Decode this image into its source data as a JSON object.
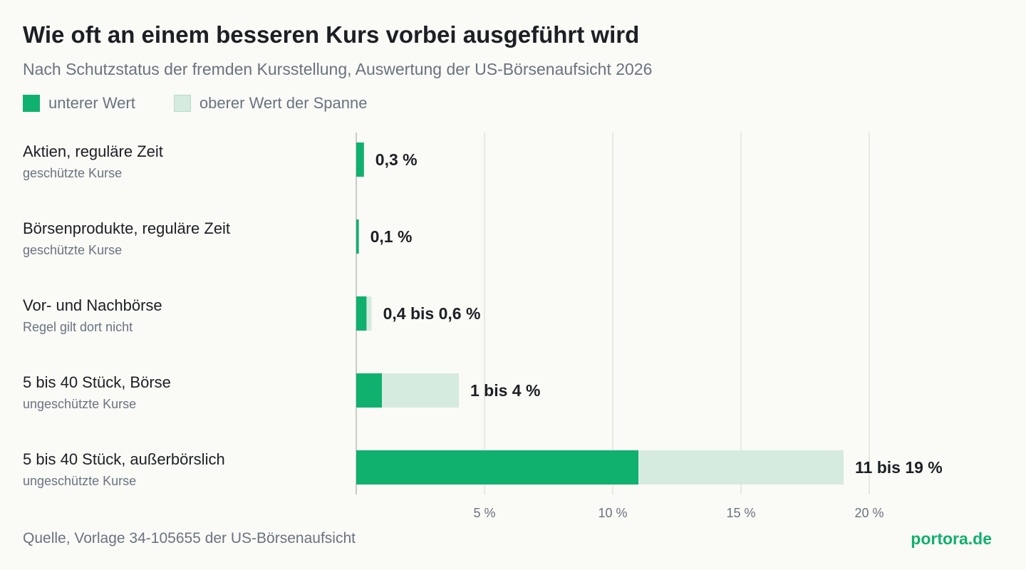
{
  "header": {
    "title": "Wie oft an einem besseren Kurs vorbei ausgeführt wird",
    "subtitle": "Nach Schutzstatus der fremden Kursstellung, Auswertung der US-Börsenaufsicht 2026"
  },
  "legend": {
    "low_label": "unterer Wert",
    "high_label": "oberer Wert der Spanne"
  },
  "colors": {
    "low": "#10b06e",
    "high": "#d6ebdf",
    "grid": "#e3e3dc",
    "axis": "#bdbdb5"
  },
  "chart_data": {
    "type": "bar",
    "orientation": "horizontal",
    "stacked_range": true,
    "categories": [
      "Aktien, reguläre Zeit",
      "Börsenprodukte, reguläre Zeit",
      "Vor- und Nachbörse",
      "5 bis 40 Stück, Börse",
      "5 bis 40 Stück, außerbörslich"
    ],
    "category_subtitles": [
      "geschützte Kurse",
      "geschützte Kurse",
      "Regel gilt dort nicht",
      "ungeschützte Kurse",
      "ungeschützte Kurse"
    ],
    "series": [
      {
        "name": "unterer Wert",
        "values": [
          0.3,
          0.1,
          0.4,
          1,
          11
        ]
      },
      {
        "name": "oberer Wert der Spanne",
        "values": [
          0.3,
          0.1,
          0.6,
          4,
          19
        ]
      }
    ],
    "data_labels": [
      "0,3 %",
      "0,1 %",
      "0,4 bis 0,6 %",
      "1 bis 4 %",
      "11 bis 19 %"
    ],
    "xlim": [
      0,
      20
    ],
    "xticks": [
      5,
      10,
      15,
      20
    ],
    "xtick_labels": [
      "5 %",
      "10 %",
      "15 %",
      "20 %"
    ],
    "grid": true,
    "legend_position": "top-left"
  },
  "footer": {
    "source": "Quelle, Vorlage 34-105655 der US-Börsenaufsicht",
    "brand": "portora.de"
  }
}
